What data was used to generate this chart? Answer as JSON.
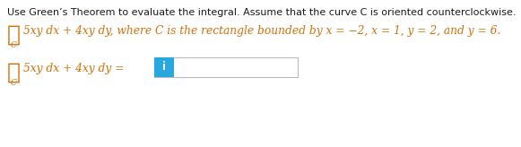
{
  "bg_color": "#ffffff",
  "text_color": "#1a1a1a",
  "orange_color": "#D4700A",
  "blue_box_color": "#29A8E0",
  "line1": "Use Green’s Theorem to evaluate the integral. Assume that the curve C is oriented counterclockwise.",
  "line2_math": "5xy dx + 4xy dy, where C is the rectangle bounded by x = −2, x = 1, y = 2, and y = 6.",
  "line3_math": "5xy dx + 4xy dy =",
  "i_text": "i",
  "font_size_line1": 8.0,
  "font_size_line2": 8.8,
  "font_size_line3": 8.8,
  "font_size_integral": 18,
  "font_size_c": 6.5,
  "font_size_i": 8.5
}
